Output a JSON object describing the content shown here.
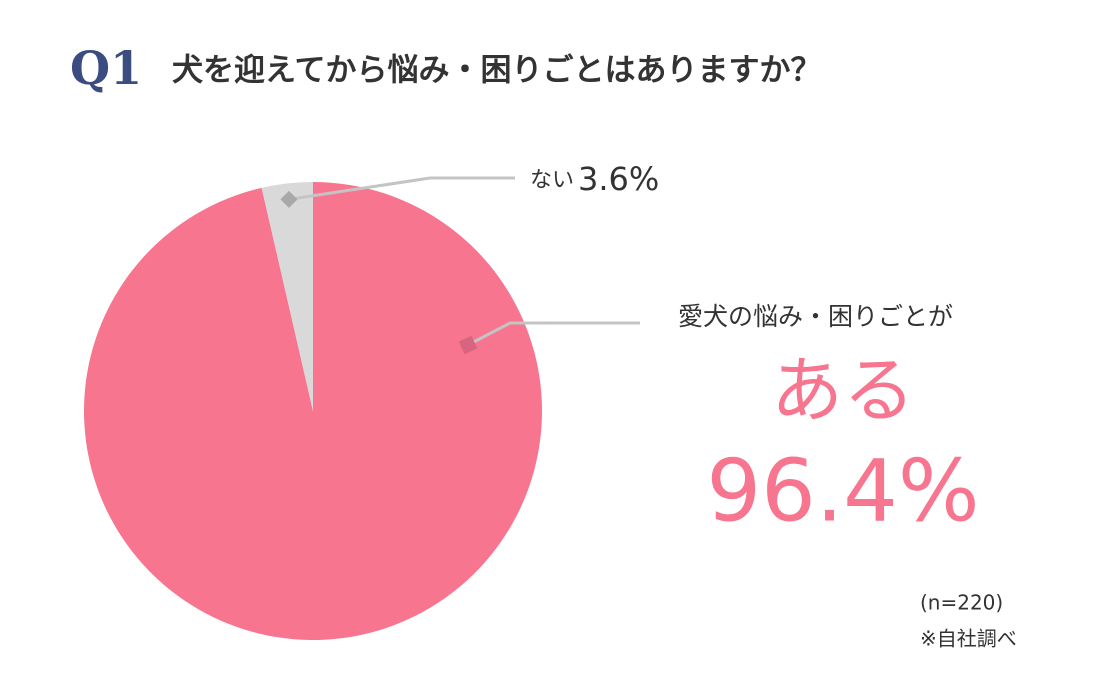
{
  "chart_data": {
    "type": "pie",
    "question_number": "Q1",
    "title": "犬を迎えてから悩み・困りごとはありますか？",
    "categories": [
      "ある",
      "ない"
    ],
    "values": [
      96.4,
      3.6
    ],
    "value_labels": [
      "96.4%",
      "3.6%"
    ],
    "colors": [
      "#f7758f",
      "#d9d9d9"
    ],
    "annotations": [
      "愛犬の悩み・困りごとが"
    ],
    "notes": [
      "(n=220)",
      "※自社調べ"
    ]
  }
}
